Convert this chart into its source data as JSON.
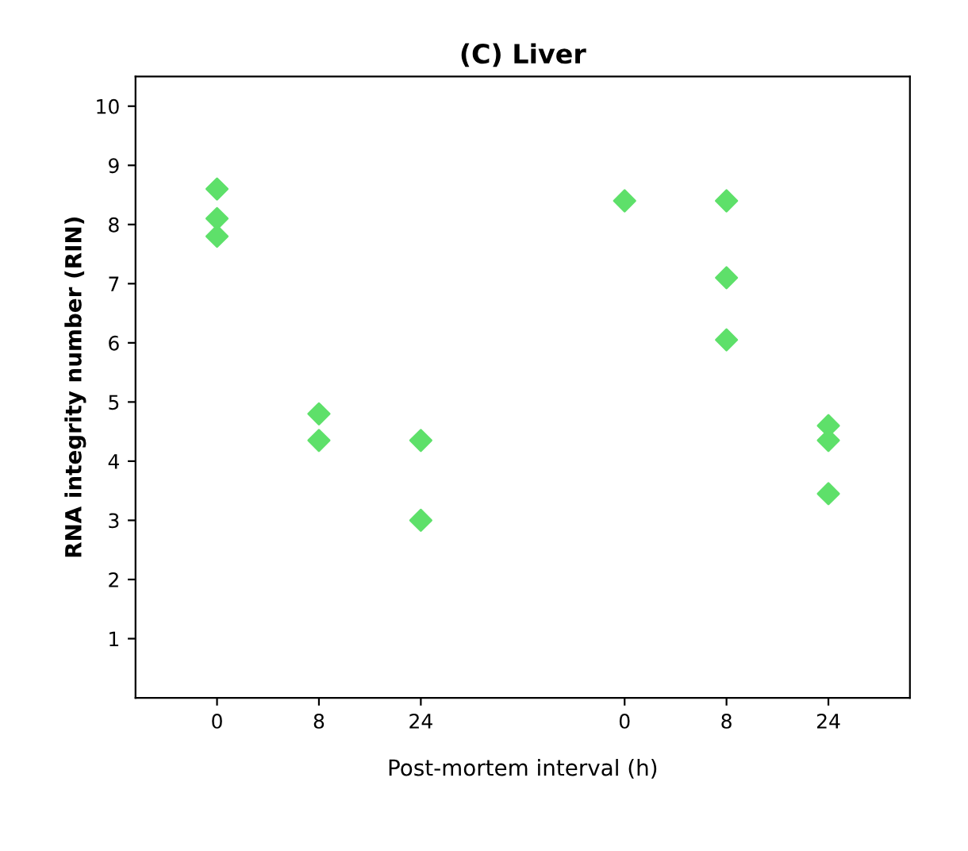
{
  "chart_data": {
    "type": "scatter",
    "title": "(C) Liver",
    "xlabel": "Post-mortem interval (h)",
    "ylabel": "RNA integrity number (RIN)",
    "categories": [
      "0",
      "8",
      "24",
      null,
      "0",
      "8",
      "24"
    ],
    "series": [
      {
        "color": "#5ee06a",
        "values": [
          8.6,
          4.8,
          4.35,
          null,
          null,
          8.4,
          4.6
        ]
      },
      {
        "color": "#5ee06a",
        "values": [
          8.1,
          4.35,
          null,
          null,
          8.4,
          7.1,
          4.35
        ]
      },
      {
        "color": "#5ee06a",
        "values": [
          7.8,
          null,
          3.0,
          null,
          null,
          6.05,
          3.45
        ]
      }
    ],
    "ylim": [
      0,
      10.5
    ],
    "yticks": [
      1,
      2,
      3,
      4,
      5,
      6,
      7,
      8,
      9,
      10
    ],
    "marker": "diamond",
    "grid": false,
    "legend": false
  }
}
